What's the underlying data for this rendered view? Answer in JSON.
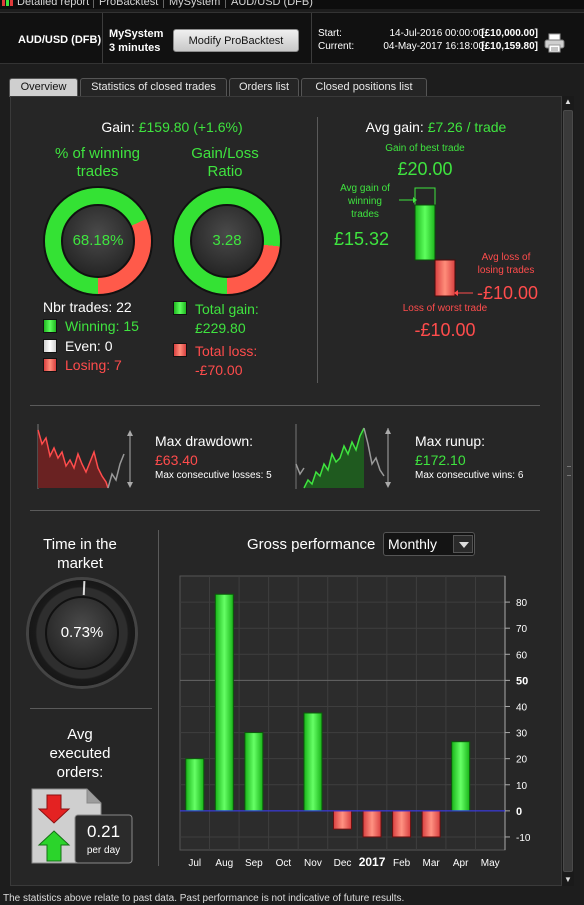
{
  "window": {
    "title_items": [
      "Detailed report",
      "ProBacktest",
      "MySystem",
      "AUD/USD (DFB)"
    ]
  },
  "header": {
    "instrument": "AUD/USD (DFB)",
    "system_name": "MySystem",
    "timeframe": "3 minutes",
    "modify_button": "Modify ProBacktest",
    "start_label": "Start:",
    "start_date": "14-Jul-2016 00:00:00",
    "start_capital": "[£10,000.00]",
    "current_label": "Current:",
    "current_date": "04-May-2017 16:18:00",
    "current_capital": "[£10,159.80]",
    "print_icon": "printer-icon"
  },
  "tabs": [
    {
      "label": "Overview",
      "active": true
    },
    {
      "label": "Statistics of closed trades",
      "active": false
    },
    {
      "label": "Orders list",
      "active": false
    },
    {
      "label": "Closed positions list",
      "active": false
    }
  ],
  "gain": {
    "label": "Gain:",
    "value": "£159.80 (+1.6%)",
    "winning_title_1": "% of winning",
    "winning_title_2": "trades",
    "winning_pct_text": "68.18%",
    "winning_fraction": 0.6818,
    "ratio_title_1": "Gain/Loss",
    "ratio_title_2": "Ratio",
    "ratio_text": "3.28",
    "ratio_green_fraction": 0.7664,
    "nbr_trades": "Nbr trades: 22",
    "winning": "Winning: 15",
    "even": "Even: 0",
    "losing": "Losing: 7",
    "total_gain_label": "Total gain:",
    "total_gain": "£229.80",
    "total_loss_label": "Total loss:",
    "total_loss": "-£70.00"
  },
  "avg": {
    "label": "Avg gain:",
    "value": "£7.26 / trade",
    "best_label": "Gain of best trade",
    "best_value": "£20.00",
    "avg_win_label_1": "Avg gain of",
    "avg_win_label_2": "winning",
    "avg_win_label_3": "trades",
    "avg_win_value": "£15.32",
    "avg_loss_label_1": "Avg loss of",
    "avg_loss_label_2": "losing trades",
    "avg_loss_value": "-£10.00",
    "worst_label": "Loss of worst trade",
    "worst_value": "-£10.00"
  },
  "drawdown": {
    "label": "Max drawdown:",
    "value": "£63.40",
    "sub": "Max consecutive losses: 5"
  },
  "runup": {
    "label": "Max runup:",
    "value": "£172.10",
    "sub": "Max consecutive wins: 6"
  },
  "time_in_market": {
    "title_1": "Time in the",
    "title_2": "market",
    "value_text": "0.73%",
    "fraction": 0.0073
  },
  "avg_orders": {
    "title_1": "Avg",
    "title_2": "executed",
    "title_3": "orders:",
    "value": "0.21",
    "unit": "per day"
  },
  "gross": {
    "title": "Gross performance",
    "period": "Monthly"
  },
  "chart_data": {
    "type": "bar",
    "categories": [
      "Jul",
      "Aug",
      "Sep",
      "Oct",
      "Nov",
      "Dec",
      "2017",
      "Feb",
      "Mar",
      "Apr",
      "May"
    ],
    "values": [
      20,
      83,
      30,
      0,
      37.5,
      -7,
      -10,
      -10,
      -10,
      26.5,
      0
    ],
    "ylim": [
      -15,
      90
    ],
    "yticks": [
      -10,
      0,
      10,
      20,
      30,
      40,
      50,
      60,
      70,
      80
    ],
    "grid": true,
    "positive_color": "#2de02d",
    "negative_color": "#ff7a6a"
  },
  "footer": "The statistics above relate to past data. Past performance is not indicative of future results."
}
